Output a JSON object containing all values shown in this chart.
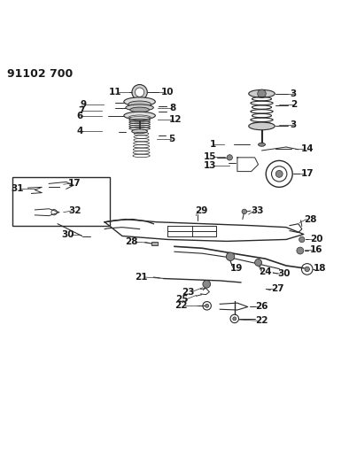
{
  "title": "91102 700",
  "bg_color": "#ffffff",
  "line_color": "#2a2a2a",
  "label_color": "#1a1a1a",
  "label_fontsize": 7.5,
  "title_fontsize": 9,
  "figsize": [
    3.94,
    5.33
  ],
  "dpi": 100
}
